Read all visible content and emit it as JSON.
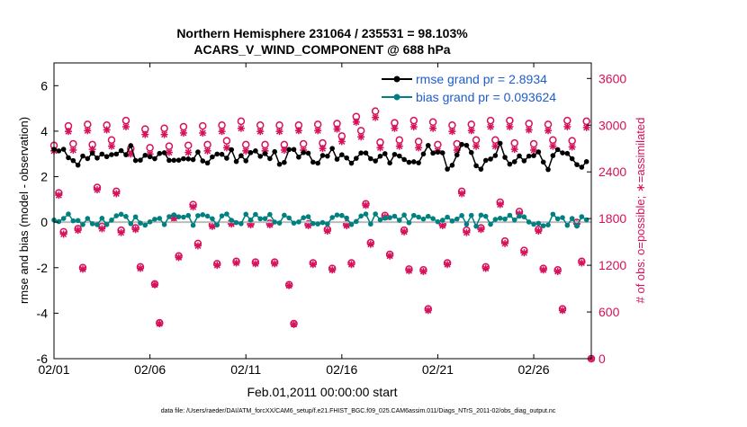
{
  "chart_data": {
    "type": "line",
    "title": "Northern Hemisphere 231064 / 235531 = 98.103%",
    "subtitle": "ACARS_V_WIND_COMPONENT @ 688 hPa",
    "xlabel": "Feb.01,2011 00:00:00 start",
    "ylabel_left": "rmse and bias (model - observation)",
    "ylabel_right": "# of obs: o=possible; ∗=assimilated",
    "footer": "data file: /Users/raeder/DAI/ATM_forcXX/CAM6_setup/f.e21.FHIST_BGC.f09_025.CAM6assim.011/Diags_NTrS_2011-02/obs_diag_output.nc",
    "x_ticks": [
      "02/01",
      "02/06",
      "02/11",
      "02/16",
      "02/21",
      "02/26"
    ],
    "x_tick_days": [
      0,
      5,
      10,
      15,
      20,
      25
    ],
    "xlim": [
      0,
      28
    ],
    "ylim_left": [
      -6,
      7
    ],
    "left_ticks": [
      6,
      4,
      2,
      0,
      -2,
      -4,
      -6
    ],
    "ylim_right": [
      0,
      3800
    ],
    "right_ticks": [
      3600,
      3000,
      2400,
      1800,
      1200,
      600,
      0
    ],
    "legend": [
      {
        "label": "rmse grand pr = 2.8934",
        "color": "#000000"
      },
      {
        "label": "bias grand pr = 0.093624",
        "color": "#008080"
      }
    ],
    "colors": {
      "rmse": "#000000",
      "bias": "#008080",
      "obs": "#d6105a",
      "zero": "#bbbbbb",
      "legend_text": "#1f5ccc"
    },
    "rmse_mean": 2.8934,
    "bias_mean": 0.093624,
    "obs_peak_possible": [
      2990,
      3010,
      3000,
      3060,
      2950,
      2960,
      2980,
      2990,
      3000,
      3050,
      3000,
      3000,
      3000,
      3010,
      3020,
      3110,
      3180,
      3030,
      3060,
      3040,
      3000,
      3010,
      3060,
      3060,
      3020,
      3010,
      3060,
      3050
    ],
    "obs_peak_assim": [
      2920,
      2930,
      2940,
      2980,
      2880,
      2880,
      2900,
      2900,
      2920,
      2960,
      2920,
      2920,
      2930,
      2930,
      2950,
      3040,
      3100,
      2960,
      2980,
      2960,
      2920,
      2930,
      2980,
      2980,
      2940,
      2930,
      2980,
      2970
    ],
    "obs_low_possible": [
      1630,
      1170,
      1700,
      1650,
      1180,
      460,
      1320,
      1480,
      1220,
      1250,
      1240,
      1240,
      450,
      1230,
      1160,
      1230,
      1490,
      1340,
      1150,
      640,
      1230,
      1650,
      1180,
      1510,
      1390,
      1160,
      640,
      1250
    ],
    "obs_low_assim": [
      1600,
      1150,
      1670,
      1620,
      1160,
      450,
      1300,
      1450,
      1200,
      1230,
      1220,
      1220,
      440,
      1210,
      1140,
      1210,
      1470,
      1320,
      1130,
      620,
      1210,
      1620,
      1160,
      1480,
      1360,
      1140,
      620,
      1230
    ]
  }
}
